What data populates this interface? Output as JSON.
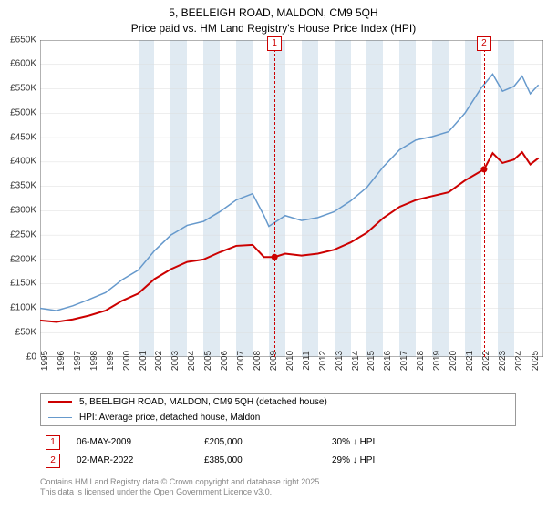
{
  "title_line1": "5, BEELEIGH ROAD, MALDON, CM9 5QH",
  "title_line2": "Price paid vs. HM Land Registry's House Price Index (HPI)",
  "chart": {
    "type": "line",
    "background_color": "#ffffff",
    "band_color": "#e0eaf2",
    "grid_color": "#dddddd",
    "axis_color": "#666666",
    "x_min": 1995,
    "x_max": 2025.8,
    "x_ticks": [
      1995,
      1996,
      1997,
      1998,
      1999,
      2000,
      2001,
      2002,
      2003,
      2004,
      2005,
      2006,
      2007,
      2008,
      2009,
      2010,
      2011,
      2012,
      2013,
      2014,
      2015,
      2016,
      2017,
      2018,
      2019,
      2020,
      2021,
      2022,
      2023,
      2024,
      2025
    ],
    "y_min": 0,
    "y_max": 650,
    "y_ticks": [
      0,
      50,
      100,
      150,
      200,
      250,
      300,
      350,
      400,
      450,
      500,
      550,
      600,
      650
    ],
    "y_tick_labels": [
      "£0",
      "£50K",
      "£100K",
      "£150K",
      "£200K",
      "£250K",
      "£300K",
      "£350K",
      "£400K",
      "£450K",
      "£500K",
      "£550K",
      "£600K",
      "£650K"
    ],
    "bands": [
      [
        2001,
        2002
      ],
      [
        2003,
        2004
      ],
      [
        2005,
        2006
      ],
      [
        2007,
        2008
      ],
      [
        2009,
        2010
      ],
      [
        2011,
        2012
      ],
      [
        2013,
        2014
      ],
      [
        2015,
        2016
      ],
      [
        2017,
        2018
      ],
      [
        2019,
        2020
      ],
      [
        2021,
        2022
      ],
      [
        2023,
        2024
      ]
    ],
    "series": [
      {
        "name": "price_paid",
        "color": "#cc0000",
        "width": 2,
        "data": [
          [
            1995,
            75
          ],
          [
            1996,
            72
          ],
          [
            1997,
            77
          ],
          [
            1998,
            85
          ],
          [
            1999,
            95
          ],
          [
            2000,
            115
          ],
          [
            2001,
            130
          ],
          [
            2002,
            160
          ],
          [
            2003,
            180
          ],
          [
            2004,
            195
          ],
          [
            2005,
            200
          ],
          [
            2006,
            215
          ],
          [
            2007,
            228
          ],
          [
            2008,
            230
          ],
          [
            2008.7,
            205
          ],
          [
            2009.35,
            205
          ],
          [
            2010,
            212
          ],
          [
            2011,
            208
          ],
          [
            2012,
            212
          ],
          [
            2013,
            220
          ],
          [
            2014,
            235
          ],
          [
            2015,
            255
          ],
          [
            2016,
            285
          ],
          [
            2017,
            308
          ],
          [
            2018,
            322
          ],
          [
            2019,
            330
          ],
          [
            2020,
            338
          ],
          [
            2021,
            362
          ],
          [
            2022.17,
            385
          ],
          [
            2022.7,
            418
          ],
          [
            2023.3,
            398
          ],
          [
            2024,
            405
          ],
          [
            2024.5,
            420
          ],
          [
            2025,
            395
          ],
          [
            2025.5,
            408
          ]
        ]
      },
      {
        "name": "hpi",
        "color": "#6699cc",
        "width": 1.5,
        "data": [
          [
            1995,
            100
          ],
          [
            1996,
            95
          ],
          [
            1997,
            105
          ],
          [
            1998,
            118
          ],
          [
            1999,
            132
          ],
          [
            2000,
            158
          ],
          [
            2001,
            178
          ],
          [
            2002,
            218
          ],
          [
            2003,
            250
          ],
          [
            2004,
            270
          ],
          [
            2005,
            278
          ],
          [
            2006,
            298
          ],
          [
            2007,
            322
          ],
          [
            2008,
            335
          ],
          [
            2008.7,
            290
          ],
          [
            2009,
            268
          ],
          [
            2010,
            290
          ],
          [
            2011,
            280
          ],
          [
            2012,
            286
          ],
          [
            2013,
            298
          ],
          [
            2014,
            320
          ],
          [
            2015,
            348
          ],
          [
            2016,
            390
          ],
          [
            2017,
            425
          ],
          [
            2018,
            445
          ],
          [
            2019,
            452
          ],
          [
            2020,
            462
          ],
          [
            2021,
            500
          ],
          [
            2022,
            552
          ],
          [
            2022.7,
            580
          ],
          [
            2023.3,
            545
          ],
          [
            2024,
            555
          ],
          [
            2024.5,
            576
          ],
          [
            2025,
            540
          ],
          [
            2025.5,
            558
          ]
        ]
      }
    ],
    "markers": [
      {
        "num": "1",
        "x": 2009.35,
        "y": 205,
        "color": "#cc0000"
      },
      {
        "num": "2",
        "x": 2022.17,
        "y": 385,
        "color": "#cc0000"
      }
    ],
    "sale_points": [
      {
        "x": 2009.35,
        "y": 205
      },
      {
        "x": 2022.17,
        "y": 385
      }
    ]
  },
  "legend": {
    "items": [
      {
        "color": "#cc0000",
        "label": "5, BEELEIGH ROAD, MALDON, CM9 5QH (detached house)",
        "width": 2
      },
      {
        "color": "#6699cc",
        "label": "HPI: Average price, detached house, Maldon",
        "width": 1.5
      }
    ]
  },
  "sales": [
    {
      "num": "1",
      "date": "06-MAY-2009",
      "price": "£205,000",
      "diff": "30% ↓ HPI",
      "color": "#cc0000"
    },
    {
      "num": "2",
      "date": "02-MAR-2022",
      "price": "£385,000",
      "diff": "29% ↓ HPI",
      "color": "#cc0000"
    }
  ],
  "footer_line1": "Contains HM Land Registry data © Crown copyright and database right 2025.",
  "footer_line2": "This data is licensed under the Open Government Licence v3.0."
}
